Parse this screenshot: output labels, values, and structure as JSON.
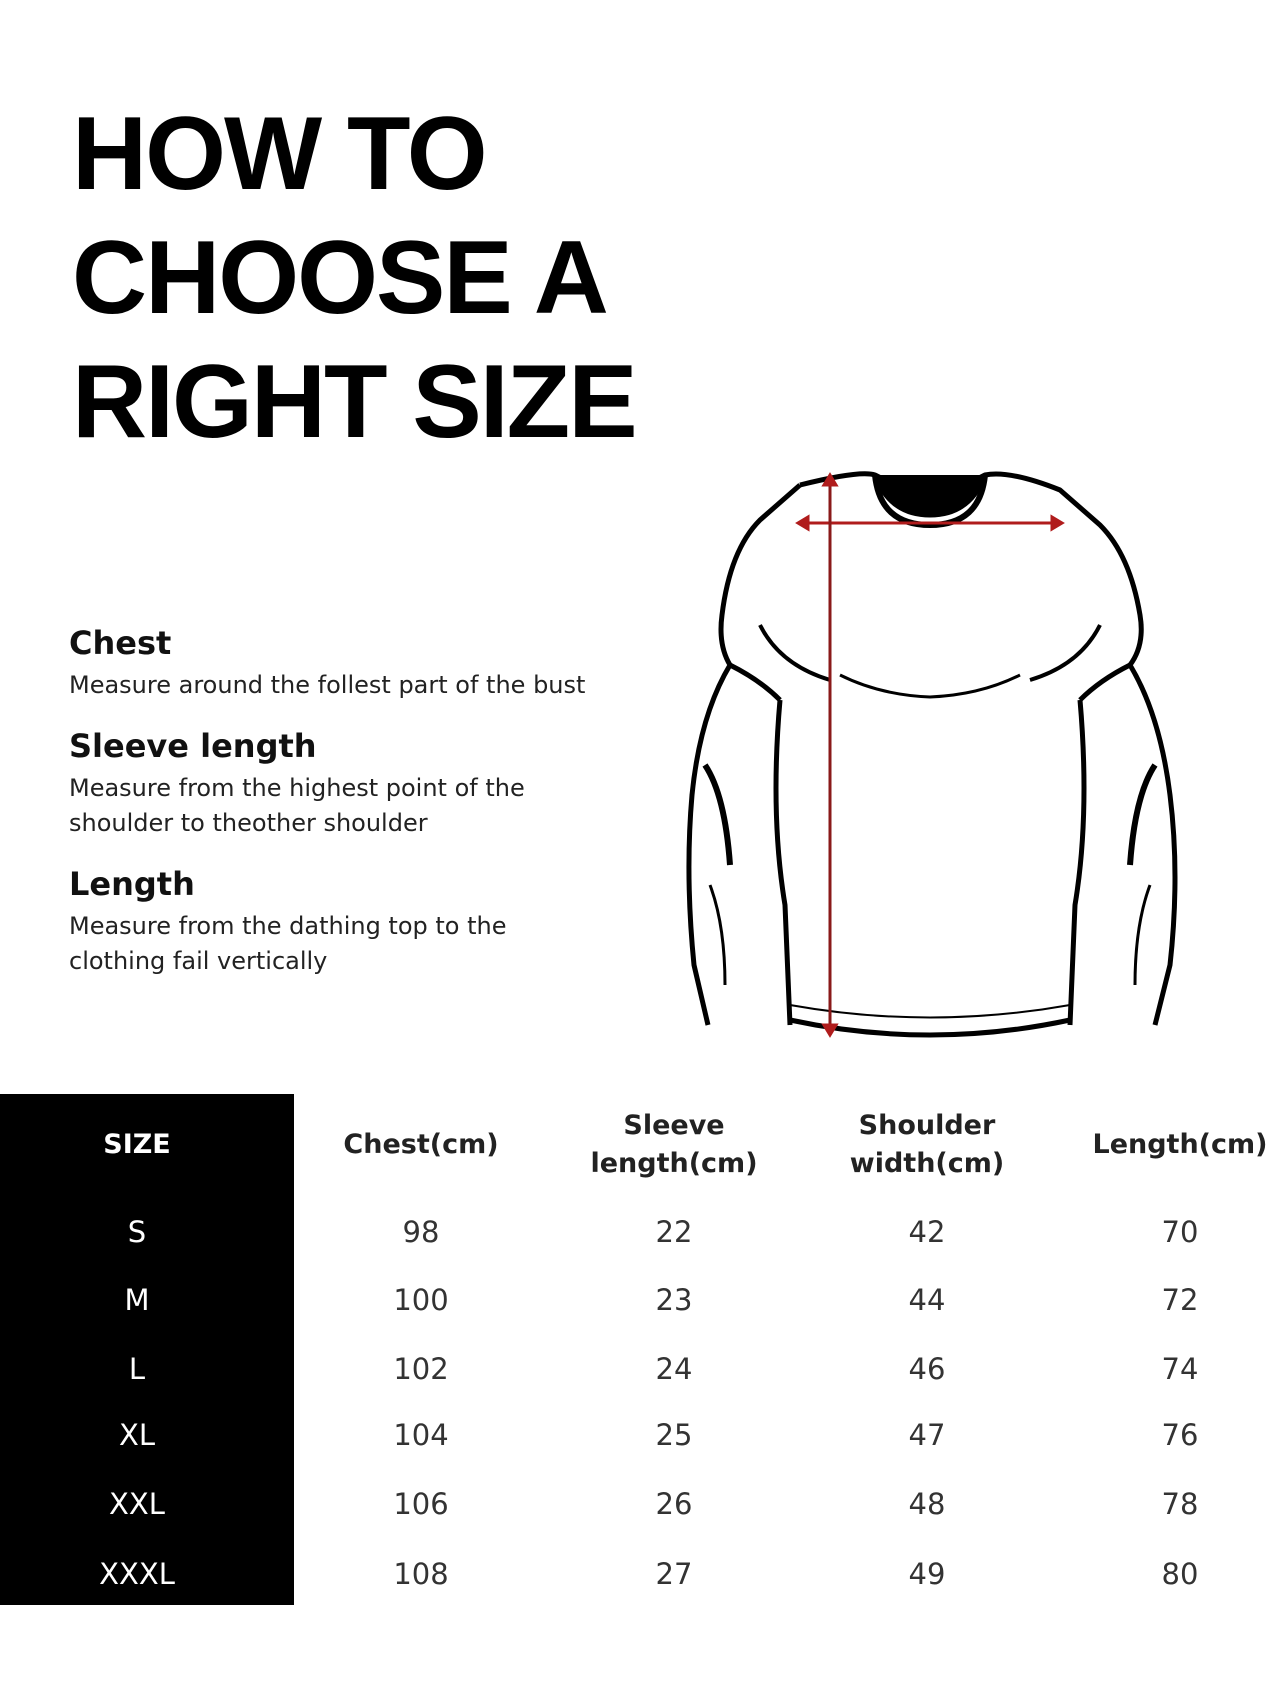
{
  "title": {
    "lines": [
      "HOW TO",
      "CHOOSE A",
      "RIGHT SIZE"
    ]
  },
  "guide": [
    {
      "heading": "Chest",
      "description": "Measure around the follest part of the bust"
    },
    {
      "heading": "Sleeve length",
      "description": "Measure from the highest point of the shoulder to theother shoulder"
    },
    {
      "heading": "Length",
      "description": "Measure from the dathing top to the clothing fail vertically"
    }
  ],
  "illustration": {
    "icon": "long-sleeve-shirt-with-measurement-lines",
    "measure_color": "#b01c1c"
  },
  "table": {
    "headers": [
      "SIZE",
      "Chest(cm)",
      "Sleeve length(cm)",
      "Shoulder width(cm)",
      "Length(cm)"
    ],
    "header_lines": [
      [
        "SIZE"
      ],
      [
        "Chest(cm)"
      ],
      [
        "Sleeve",
        "length(cm)"
      ],
      [
        "Shoulder",
        "width(cm)"
      ],
      [
        "Length(cm)"
      ]
    ],
    "rows": [
      [
        "S",
        "98",
        "22",
        "42",
        "70"
      ],
      [
        "M",
        "100",
        "23",
        "44",
        "72"
      ],
      [
        "L",
        "102",
        "24",
        "46",
        "74"
      ],
      [
        "XL",
        "104",
        "25",
        "47",
        "76"
      ],
      [
        "XXL",
        "106",
        "26",
        "48",
        "78"
      ],
      [
        "XXXL",
        "108",
        "27",
        "49",
        "80"
      ]
    ]
  }
}
